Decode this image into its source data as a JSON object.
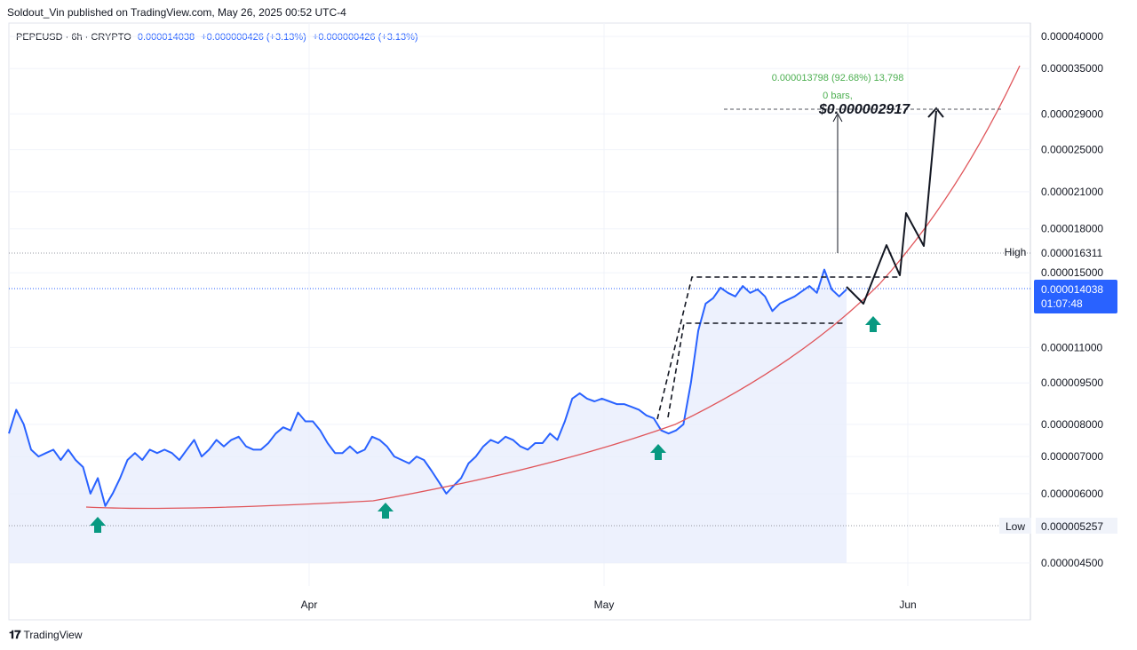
{
  "header": {
    "published_by": "Soldout_Vin published on TradingView.com, May 26, 2025 00:52 UTC-4"
  },
  "legend": {
    "symbol": "PEPEUSD · 6h · CRYPTO",
    "price": "0.000014038",
    "change1": "+0.000000426 (+3.13%)",
    "change2": "+0.000000426 (+3.13%)"
  },
  "footer": {
    "brand": "TradingView"
  },
  "colors": {
    "price_line": "#2962ff",
    "area_fill": "#e8eefc",
    "curve": "#e0565b",
    "arrow": "#089981",
    "measure_text": "#4caf50"
  },
  "chart_data": {
    "type": "line",
    "title": "",
    "xlabel": "",
    "ylabel": "",
    "x_ticks": [
      "Apr",
      "May",
      "Jun"
    ],
    "y_scale": "log",
    "y_ticks": [
      "0.000040000",
      "0.000035000",
      "0.000029000",
      "0.000025000",
      "0.000021000",
      "0.000018000",
      "0.000015000",
      "0.000011000",
      "0.000009500",
      "0.000008000",
      "0.000007000",
      "0.000006000",
      "0.000004500"
    ],
    "high": {
      "label": "High",
      "value": "0.000016311"
    },
    "low": {
      "label": "Low",
      "value": "0.000005257"
    },
    "last_price": {
      "value": "0.000014038",
      "countdown": "01:07:48"
    },
    "measure": {
      "text": "0.000013798 (92.68%) 13,798",
      "bars": "0 bars,",
      "target_label": "$0.000002917"
    },
    "ylim": [
      4.3e-06,
      4.1e-05
    ],
    "series": [
      {
        "values": [
          7.7e-06,
          8.5e-06,
          8e-06,
          7.2e-06,
          7e-06,
          7.1e-06,
          7.2e-06,
          6.9e-06,
          7.2e-06,
          6.9e-06,
          6.7e-06,
          6e-06,
          6.4e-06,
          5.7e-06,
          6e-06,
          6.4e-06,
          6.9e-06,
          7.1e-06,
          6.9e-06,
          7.2e-06,
          7.1e-06,
          7.2e-06,
          7.1e-06,
          6.9e-06,
          7.2e-06,
          7.5e-06,
          7e-06,
          7.2e-06,
          7.5e-06,
          7.3e-06,
          7.5e-06,
          7.6e-06,
          7.3e-06,
          7.2e-06,
          7.2e-06,
          7.4e-06,
          7.7e-06,
          7.9e-06,
          7.8e-06,
          8.4e-06,
          8.1e-06,
          8.1e-06,
          7.8e-06,
          7.4e-06,
          7.1e-06,
          7.1e-06,
          7.3e-06,
          7.1e-06,
          7.2e-06,
          7.6e-06,
          7.5e-06,
          7.3e-06,
          7e-06,
          6.9e-06,
          6.8e-06,
          7e-06,
          6.9e-06,
          6.6e-06,
          6.3e-06,
          6e-06,
          6.2e-06,
          6.4e-06,
          6.8e-06,
          7e-06,
          7.3e-06,
          7.5e-06,
          7.4e-06,
          7.6e-06,
          7.5e-06,
          7.3e-06,
          7.2e-06,
          7.4e-06,
          7.4e-06,
          7.7e-06,
          7.5e-06,
          8.1e-06,
          8.9e-06,
          9.1e-06,
          8.9e-06,
          8.8e-06,
          8.9e-06,
          8.8e-06,
          8.7e-06,
          8.7e-06,
          8.6e-06,
          8.5e-06,
          8.3e-06,
          8.2e-06,
          7.8e-06,
          7.7e-06,
          7.8e-06,
          8e-06,
          9.5e-06,
          1.18e-05,
          1.32e-05,
          1.35e-05,
          1.41e-05,
          1.38e-05,
          1.36e-05,
          1.42e-05,
          1.38e-05,
          1.4e-05,
          1.36e-05,
          1.28e-05,
          1.32e-05,
          1.34e-05,
          1.36e-05,
          1.39e-05,
          1.42e-05,
          1.38e-05,
          1.52e-05,
          1.4e-05,
          1.36e-05,
          1.4e-05
        ]
      }
    ]
  }
}
